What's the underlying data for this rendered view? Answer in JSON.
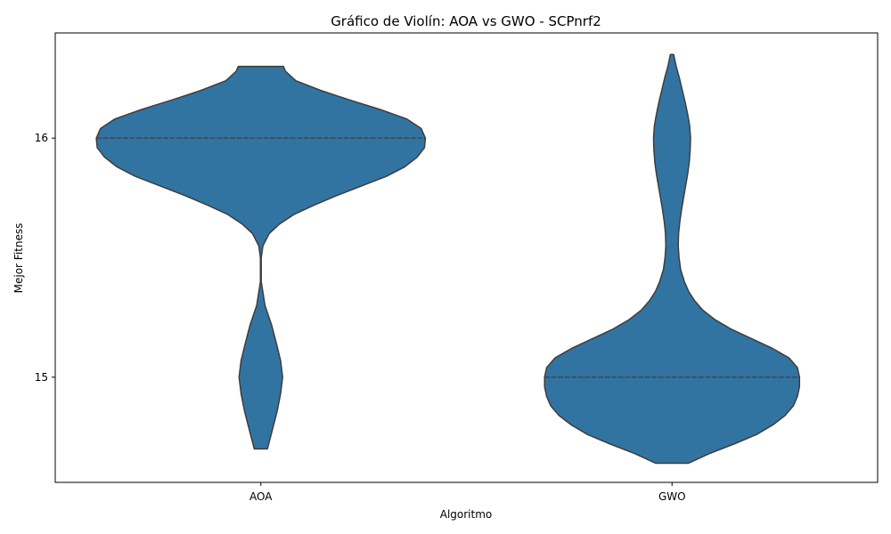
{
  "chart_data": {
    "type": "violin",
    "title": "Gráfico de Violín: AOA vs GWO - SCPnrf2",
    "xlabel": "Algoritmo",
    "ylabel": "Mejor Fitness",
    "categories": [
      "AOA",
      "GWO"
    ],
    "y_ticks": [
      15,
      16
    ],
    "ylim": [
      14.56,
      16.44
    ],
    "grid": false,
    "colors": {
      "violin_fill": "#3274a1",
      "violin_edge": "#3d3d3d",
      "axis": "#000000"
    },
    "violins": [
      {
        "category": "AOA",
        "y_min": 14.7,
        "y_max": 16.3,
        "median": 16.0,
        "max_half_width": 0.4,
        "density": [
          [
            14.7,
            0.016
          ],
          [
            14.78,
            0.028
          ],
          [
            14.86,
            0.04
          ],
          [
            14.93,
            0.048
          ],
          [
            15.0,
            0.053
          ],
          [
            15.07,
            0.048
          ],
          [
            15.14,
            0.038
          ],
          [
            15.22,
            0.026
          ],
          [
            15.3,
            0.01
          ],
          [
            15.4,
            0.001
          ],
          [
            15.5,
            0.001
          ],
          [
            15.55,
            0.005
          ],
          [
            15.6,
            0.02
          ],
          [
            15.64,
            0.045
          ],
          [
            15.68,
            0.08
          ],
          [
            15.72,
            0.13
          ],
          [
            15.76,
            0.185
          ],
          [
            15.8,
            0.245
          ],
          [
            15.84,
            0.305
          ],
          [
            15.88,
            0.35
          ],
          [
            15.92,
            0.38
          ],
          [
            15.96,
            0.398
          ],
          [
            16.0,
            0.4
          ],
          [
            16.04,
            0.39
          ],
          [
            16.08,
            0.355
          ],
          [
            16.12,
            0.29
          ],
          [
            16.16,
            0.215
          ],
          [
            16.2,
            0.145
          ],
          [
            16.24,
            0.085
          ],
          [
            16.28,
            0.06
          ],
          [
            16.3,
            0.055
          ]
        ]
      },
      {
        "category": "GWO",
        "y_min": 14.64,
        "y_max": 16.35,
        "median": 15.0,
        "max_half_width": 0.31,
        "density": [
          [
            14.64,
            0.04
          ],
          [
            14.68,
            0.09
          ],
          [
            14.72,
            0.15
          ],
          [
            14.76,
            0.205
          ],
          [
            14.8,
            0.245
          ],
          [
            14.84,
            0.275
          ],
          [
            14.88,
            0.295
          ],
          [
            14.92,
            0.305
          ],
          [
            14.96,
            0.31
          ],
          [
            15.0,
            0.31
          ],
          [
            15.04,
            0.305
          ],
          [
            15.08,
            0.285
          ],
          [
            15.12,
            0.245
          ],
          [
            15.16,
            0.195
          ],
          [
            15.2,
            0.145
          ],
          [
            15.24,
            0.105
          ],
          [
            15.28,
            0.075
          ],
          [
            15.32,
            0.055
          ],
          [
            15.36,
            0.04
          ],
          [
            15.4,
            0.03
          ],
          [
            15.45,
            0.021
          ],
          [
            15.5,
            0.017
          ],
          [
            15.55,
            0.015
          ],
          [
            15.6,
            0.016
          ],
          [
            15.65,
            0.019
          ],
          [
            15.7,
            0.023
          ],
          [
            15.75,
            0.028
          ],
          [
            15.8,
            0.033
          ],
          [
            15.85,
            0.038
          ],
          [
            15.9,
            0.042
          ],
          [
            15.95,
            0.044
          ],
          [
            16.0,
            0.045
          ],
          [
            16.05,
            0.043
          ],
          [
            16.1,
            0.038
          ],
          [
            16.15,
            0.032
          ],
          [
            16.2,
            0.025
          ],
          [
            16.25,
            0.018
          ],
          [
            16.3,
            0.01
          ],
          [
            16.35,
            0.004
          ]
        ]
      }
    ]
  }
}
